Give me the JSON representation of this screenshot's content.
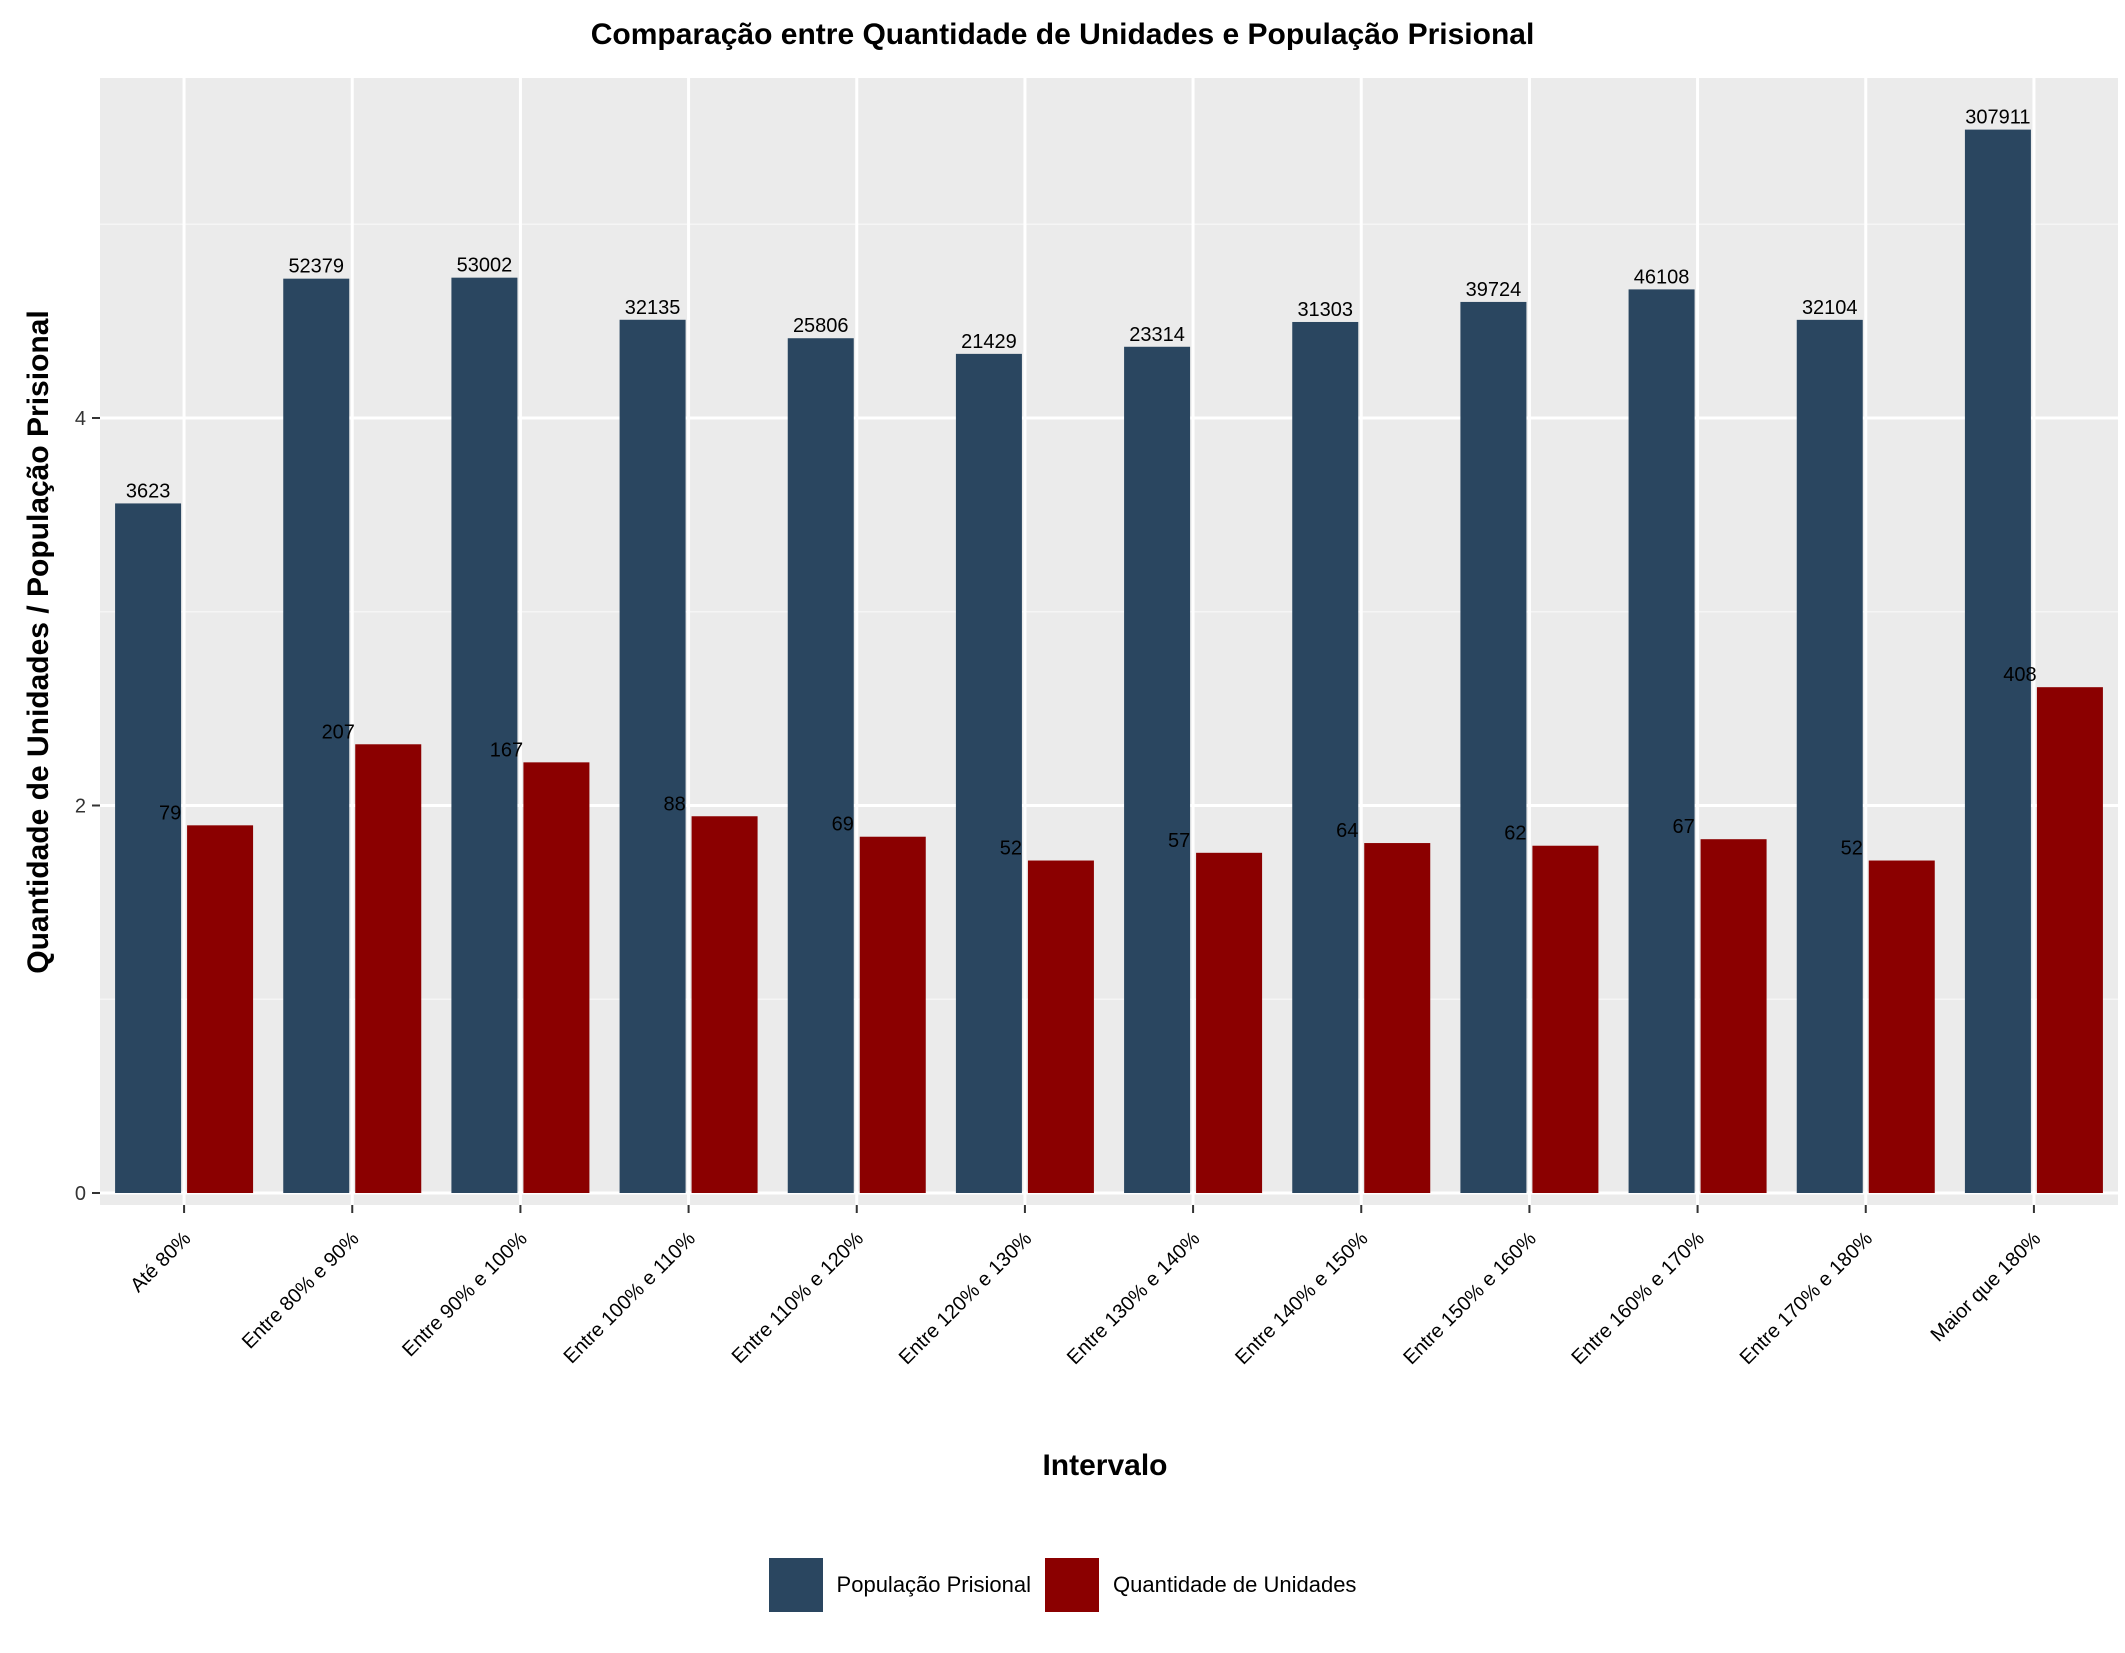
{
  "chart_data": {
    "type": "bar",
    "title": "Comparação entre Quantidade de Unidades e População Prisional",
    "xlabel": "Intervalo",
    "ylabel": "Quantidade de Unidades / População Prisional",
    "y_scale": "log10",
    "y_ticks": [
      "0",
      "2",
      "4"
    ],
    "grid": true,
    "legend_position": "bottom",
    "categories": [
      "Até 80%",
      "Entre 80% e 90%",
      "Entre 90% e 100%",
      "Entre 100% e 110%",
      "Entre 110% e 120%",
      "Entre 120% e 130%",
      "Entre 130% e 140%",
      "Entre 140% e 150%",
      "Entre 150% e 160%",
      "Entre 160% e 170%",
      "Entre 170% e 180%",
      "Maior que 180%"
    ],
    "series": [
      {
        "name": "População Prisional",
        "color": "#2A4660",
        "values": [
          3623,
          52379,
          53002,
          32135,
          25806,
          21429,
          23314,
          31303,
          39724,
          46108,
          32104,
          307911
        ]
      },
      {
        "name": "Quantidade de Unidades",
        "color": "#8B0000",
        "values": [
          79,
          207,
          167,
          88,
          69,
          52,
          57,
          64,
          62,
          67,
          52,
          408
        ]
      }
    ]
  }
}
